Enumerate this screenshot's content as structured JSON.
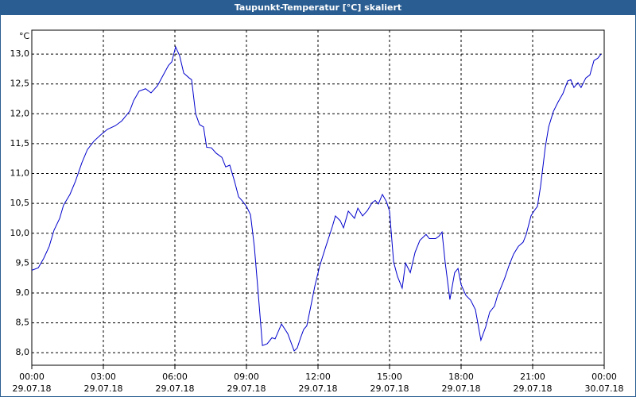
{
  "chart_data": {
    "type": "line",
    "title": "Taupunkt-Temperatur [°C] skaliert",
    "y_label": "°C",
    "x": [
      0,
      0.27,
      0.5,
      0.73,
      0.93,
      1.17,
      1.33,
      1.6,
      1.83,
      2.1,
      2.33,
      2.6,
      2.87,
      3.17,
      3.5,
      3.77,
      4.1,
      4.27,
      4.5,
      4.77,
      5.0,
      5.27,
      5.5,
      5.73,
      5.87,
      6.03,
      6.2,
      6.37,
      6.6,
      6.7,
      6.87,
      7.03,
      7.2,
      7.33,
      7.53,
      7.73,
      7.97,
      8.13,
      8.3,
      8.5,
      8.67,
      8.83,
      9.0,
      9.17,
      9.33,
      9.47,
      9.67,
      9.87,
      10.07,
      10.2,
      10.47,
      10.73,
      11.0,
      11.13,
      11.27,
      11.4,
      11.53,
      11.7,
      11.87,
      12.07,
      12.33,
      12.6,
      12.73,
      12.93,
      13.07,
      13.27,
      13.4,
      13.53,
      13.67,
      13.87,
      14.07,
      14.27,
      14.4,
      14.53,
      14.7,
      14.87,
      15.0,
      15.17,
      15.33,
      15.53,
      15.67,
      15.87,
      16.07,
      16.27,
      16.53,
      16.67,
      16.93,
      17.07,
      17.2,
      17.33,
      17.53,
      17.73,
      17.87,
      18.0,
      18.2,
      18.4,
      18.6,
      18.83,
      19.03,
      19.2,
      19.4,
      19.53,
      19.67,
      19.83,
      20.0,
      20.2,
      20.4,
      20.6,
      20.73,
      20.93,
      21.07,
      21.2,
      21.33,
      21.53,
      21.67,
      21.87,
      22.07,
      22.27,
      22.47,
      22.6,
      22.73,
      22.9,
      23.03,
      23.23,
      23.4,
      23.57,
      23.73,
      23.87
    ],
    "series": [
      {
        "name": "Taupunkt-Temperatur",
        "color": "#0000cc",
        "values": [
          9.38,
          9.42,
          9.58,
          9.78,
          10.05,
          10.25,
          10.47,
          10.65,
          10.87,
          11.18,
          11.4,
          11.54,
          11.64,
          11.74,
          11.8,
          11.88,
          12.04,
          12.22,
          12.38,
          12.42,
          12.35,
          12.47,
          12.64,
          12.81,
          12.87,
          13.12,
          12.97,
          12.68,
          12.6,
          12.57,
          12.0,
          11.82,
          11.78,
          11.44,
          11.43,
          11.34,
          11.27,
          11.11,
          11.14,
          10.87,
          10.61,
          10.54,
          10.45,
          10.31,
          9.78,
          9.11,
          8.12,
          8.15,
          8.25,
          8.23,
          8.48,
          8.32,
          8.03,
          8.08,
          8.25,
          8.39,
          8.45,
          8.78,
          9.12,
          9.45,
          9.78,
          10.11,
          10.29,
          10.21,
          10.09,
          10.37,
          10.31,
          10.25,
          10.42,
          10.29,
          10.38,
          10.51,
          10.55,
          10.49,
          10.65,
          10.53,
          10.37,
          9.52,
          9.28,
          9.08,
          9.5,
          9.34,
          9.68,
          9.88,
          9.98,
          9.91,
          9.91,
          9.95,
          10.02,
          9.52,
          8.89,
          9.34,
          9.41,
          9.14,
          8.96,
          8.88,
          8.72,
          8.21,
          8.43,
          8.68,
          8.78,
          8.96,
          9.09,
          9.25,
          9.45,
          9.65,
          9.78,
          9.85,
          9.98,
          10.29,
          10.38,
          10.45,
          10.78,
          11.44,
          11.78,
          12.04,
          12.2,
          12.34,
          12.55,
          12.57,
          12.44,
          12.52,
          12.44,
          12.6,
          12.65,
          12.89,
          12.93,
          13.0
        ]
      }
    ],
    "xlim": [
      0,
      24
    ],
    "xticks": [
      {
        "value": 0,
        "label": "00:00"
      },
      {
        "value": 3,
        "label": "03:00"
      },
      {
        "value": 6,
        "label": "06:00"
      },
      {
        "value": 9,
        "label": "09:00"
      },
      {
        "value": 12,
        "label": "12:00"
      },
      {
        "value": 15,
        "label": "15:00"
      },
      {
        "value": 18,
        "label": "18:00"
      },
      {
        "value": 21,
        "label": "21:00"
      },
      {
        "value": 24,
        "label": "00:00"
      }
    ],
    "xtick_dates": [
      "29.07.18",
      "29.07.18",
      "29.07.18",
      "29.07.18",
      "29.07.18",
      "29.07.18",
      "29.07.18",
      "29.07.18",
      "30.07.18"
    ],
    "ylim": [
      7.79,
      13.4
    ],
    "yticks": [
      {
        "value": 8,
        "label": "8,0"
      },
      {
        "value": 8.5,
        "label": "8,5"
      },
      {
        "value": 9,
        "label": "9,0"
      },
      {
        "value": 9.5,
        "label": "9,5"
      },
      {
        "value": 10,
        "label": "10,0"
      },
      {
        "value": 10.5,
        "label": "10,5"
      },
      {
        "value": 11,
        "label": "11,0"
      },
      {
        "value": 11.5,
        "label": "11,5"
      },
      {
        "value": 12,
        "label": "12,0"
      },
      {
        "value": 12.5,
        "label": "12,5"
      },
      {
        "value": 13,
        "label": "13,0"
      }
    ],
    "grid": true
  }
}
